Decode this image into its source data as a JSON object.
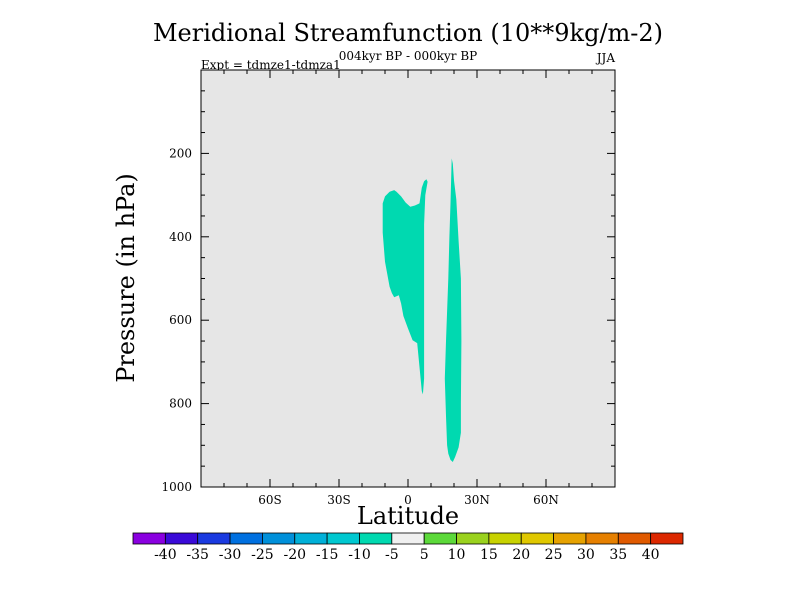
{
  "chart_data": {
    "type": "contour",
    "title": "Meridional Streamfunction (10**9kg/m-2)",
    "subtitle": "004kyr BP - 000kyr BP",
    "left_annotation": "Expt = tdmze1-tdmza1",
    "right_annotation": "JJA",
    "xlabel": "Latitude",
    "ylabel": "Pressure (in hPa)",
    "xlim": [
      -90,
      90
    ],
    "ylim": [
      1000,
      0
    ],
    "x_ticks": [
      {
        "value": -60,
        "label": "60S"
      },
      {
        "value": -30,
        "label": "30S"
      },
      {
        "value": 0,
        "label": "0"
      },
      {
        "value": 30,
        "label": "30N"
      },
      {
        "value": 60,
        "label": "60N"
      }
    ],
    "y_ticks": [
      {
        "value": 200,
        "label": "200"
      },
      {
        "value": 400,
        "label": "400"
      },
      {
        "value": 600,
        "label": "600"
      },
      {
        "value": 800,
        "label": "800"
      },
      {
        "value": 1000,
        "label": "1000"
      }
    ],
    "background_color": "#e6e6e6",
    "regions": [
      {
        "name": "contour-region-tropical-south",
        "level_range": [
          -10,
          -5
        ],
        "color": "#00d9b0",
        "points": [
          [
            -11,
            320
          ],
          [
            -10,
            303
          ],
          [
            -8,
            292
          ],
          [
            -6,
            288
          ],
          [
            -5,
            292
          ],
          [
            -3,
            303
          ],
          [
            -1,
            318
          ],
          [
            1,
            328
          ],
          [
            3,
            325
          ],
          [
            5,
            320
          ],
          [
            6,
            282
          ],
          [
            7,
            267
          ],
          [
            8,
            262
          ],
          [
            8.5,
            268
          ],
          [
            7.5,
            300
          ],
          [
            7,
            370
          ],
          [
            7,
            600
          ],
          [
            7,
            740
          ],
          [
            6.5,
            778
          ],
          [
            6,
            770
          ],
          [
            4,
            655
          ],
          [
            2,
            648
          ],
          [
            0,
            620
          ],
          [
            -2,
            590
          ],
          [
            -3,
            560
          ],
          [
            -4,
            540
          ],
          [
            -6,
            545
          ],
          [
            -7,
            535
          ],
          [
            -8,
            520
          ],
          [
            -10,
            460
          ],
          [
            -11,
            390
          ]
        ]
      },
      {
        "name": "contour-region-tropical-north",
        "level_range": [
          -10,
          -5
        ],
        "color": "#00d9b0",
        "points": [
          [
            19,
            212
          ],
          [
            19.5,
            225
          ],
          [
            20,
            265
          ],
          [
            21,
            310
          ],
          [
            22,
            410
          ],
          [
            23,
            500
          ],
          [
            23.2,
            650
          ],
          [
            23,
            800
          ],
          [
            23,
            870
          ],
          [
            22,
            905
          ],
          [
            20.5,
            928
          ],
          [
            19.5,
            940
          ],
          [
            18.5,
            935
          ],
          [
            17.5,
            920
          ],
          [
            17,
            900
          ],
          [
            16.5,
            830
          ],
          [
            16,
            740
          ],
          [
            16.5,
            650
          ],
          [
            17.5,
            500
          ],
          [
            18,
            400
          ],
          [
            18.5,
            320
          ]
        ]
      }
    ],
    "colorbar": {
      "labels": [
        "-40",
        "-35",
        "-30",
        "-25",
        "-20",
        "-15",
        "-10",
        "-5",
        "5",
        "10",
        "15",
        "20",
        "25",
        "30",
        "35",
        "40"
      ],
      "colors": [
        "#8a00e0",
        "#3a0ad8",
        "#1a3ae0",
        "#0070e0",
        "#0090da",
        "#00b0d8",
        "#00c8d0",
        "#00d9b0",
        "#f0f0f0",
        "#5cd93a",
        "#9ad21e",
        "#c8d200",
        "#e0c800",
        "#e6a200",
        "#e68000",
        "#e05a00",
        "#dc2800"
      ]
    }
  }
}
